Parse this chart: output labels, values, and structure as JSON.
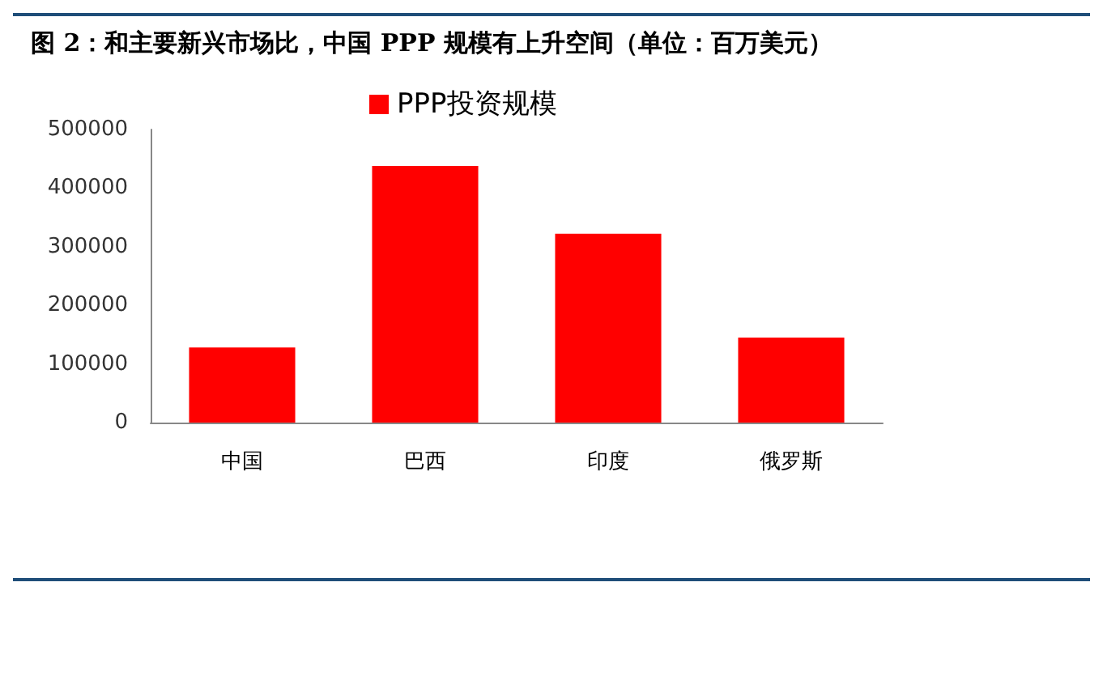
{
  "chart_data": {
    "type": "bar",
    "title": "图 2：和主要新兴市场比，中国 PPP 规模有上升空间（单位：百万美元）",
    "categories": [
      "中国",
      "巴西",
      "印度",
      "俄罗斯"
    ],
    "series": [
      {
        "name": "PPP投资规模",
        "color": "#ff0000",
        "values": [
          128000,
          438000,
          322000,
          145000
        ]
      }
    ],
    "ylim": [
      0,
      500000
    ],
    "yticks": [
      0,
      100000,
      200000,
      300000,
      400000,
      500000
    ],
    "grid": false,
    "legend": "top"
  }
}
